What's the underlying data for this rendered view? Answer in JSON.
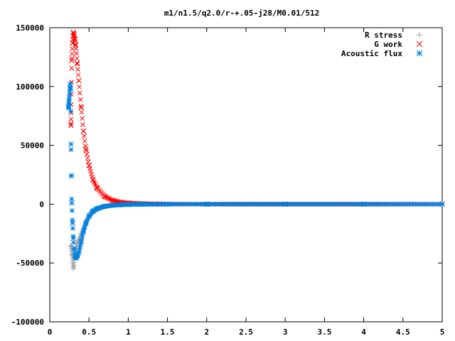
{
  "chart_data": {
    "type": "scatter",
    "title": "m1/n1.5/q2.0/r-+.05-j28/M0.01/512",
    "xlabel": "",
    "ylabel": "",
    "xlim": [
      0,
      5
    ],
    "ylim": [
      -100000,
      150000
    ],
    "x_ticks": [
      "0",
      "0.5",
      "1",
      "1.5",
      "2",
      "2.5",
      "3",
      "3.5",
      "4",
      "4.5",
      "5"
    ],
    "y_ticks": [
      "150000",
      "100000",
      "50000",
      "0",
      "-50000",
      "-100000"
    ],
    "grid": false,
    "legend_position": "top-right",
    "series": [
      {
        "name": "R stress",
        "marker": "plus",
        "color": "#a0a0a0",
        "x": [
          0.27,
          0.28,
          0.29,
          0.3,
          0.31,
          0.32,
          0.33,
          0.35,
          0.37,
          0.4,
          0.43,
          0.46,
          0.5,
          0.55,
          0.6,
          0.7,
          0.8,
          0.9,
          1.0,
          1.2,
          1.5,
          2.0,
          3.0,
          4.0,
          5.0
        ],
        "values": [
          -35000,
          -43000,
          -50000,
          -55000,
          -52000,
          -45000,
          -38000,
          -33000,
          -30000,
          -25000,
          -20000,
          -16000,
          -11000,
          -7000,
          -4500,
          -2200,
          -1200,
          -700,
          -400,
          -150,
          -40,
          -10,
          0,
          0,
          0
        ]
      },
      {
        "name": "G work",
        "marker": "cross",
        "color": "#ff0000",
        "x": [
          0.27,
          0.28,
          0.29,
          0.3,
          0.31,
          0.32,
          0.33,
          0.35,
          0.37,
          0.4,
          0.43,
          0.46,
          0.5,
          0.55,
          0.6,
          0.7,
          0.8,
          0.9,
          1.0,
          1.2,
          1.4,
          2.0,
          3.0,
          4.0,
          5.0
        ],
        "values": [
          67000,
          122000,
          137000,
          146000,
          144000,
          140000,
          135000,
          120000,
          105000,
          82000,
          62000,
          47000,
          33000,
          21000,
          14000,
          6500,
          3200,
          1700,
          1000,
          400,
          150,
          20,
          0,
          0,
          0
        ]
      },
      {
        "name": "Acoustic flux",
        "marker": "star",
        "color": "#0080e0",
        "x": [
          0.24,
          0.26,
          0.265,
          0.27,
          0.275,
          0.28,
          0.29,
          0.3,
          0.31,
          0.32,
          0.33,
          0.35,
          0.37,
          0.4,
          0.43,
          0.46,
          0.5,
          0.55,
          0.6,
          0.7,
          0.8,
          0.9,
          1.0,
          1.2,
          1.5,
          2.0,
          3.0,
          4.0,
          5.0
        ],
        "values": [
          82000,
          102000,
          98000,
          51000,
          24000,
          1000,
          -16000,
          -29000,
          -38000,
          -44000,
          -46000,
          -44000,
          -41000,
          -32000,
          -23000,
          -16000,
          -10000,
          -6000,
          -3800,
          -1800,
          -900,
          -500,
          -300,
          -100,
          -30,
          -5,
          0,
          0,
          0
        ]
      }
    ]
  }
}
